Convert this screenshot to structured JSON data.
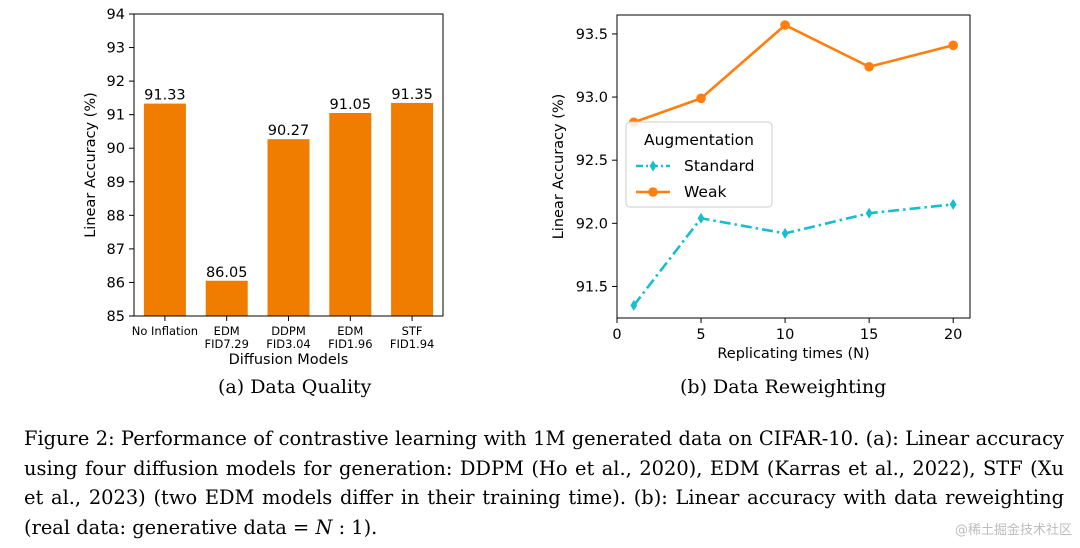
{
  "chart_data": [
    {
      "type": "bar",
      "panel": "a",
      "title": "",
      "xlabel": "Diffusion Models",
      "ylabel": "Linear Accuracy (%)",
      "ylim": [
        85,
        94
      ],
      "yticks": [
        85,
        86,
        87,
        88,
        89,
        90,
        91,
        92,
        93,
        94
      ],
      "ytick_labels": [
        "85",
        "86",
        "87",
        "88",
        "89",
        "90",
        "91",
        "92",
        "93",
        "94"
      ],
      "categories": [
        [
          "No Inflation"
        ],
        [
          "EDM",
          "FID7.29"
        ],
        [
          "DDPM",
          "FID3.04"
        ],
        [
          "EDM",
          "FID1.96"
        ],
        [
          "STF",
          "FID1.94"
        ]
      ],
      "values": [
        91.33,
        86.05,
        90.27,
        91.05,
        91.35
      ],
      "value_labels": [
        "91.33",
        "86.05",
        "90.27",
        "91.05",
        "91.35"
      ],
      "bar_color": "#f07d00",
      "grid": false
    },
    {
      "type": "line",
      "panel": "b",
      "title": "",
      "xlabel": "Replicating times (N)",
      "ylabel": "Linear Accuracy (%)",
      "xlim": [
        0,
        21
      ],
      "ylim": [
        91.25,
        93.65
      ],
      "xticks": [
        0,
        5,
        10,
        15,
        20
      ],
      "xtick_labels": [
        "0",
        "5",
        "10",
        "15",
        "20"
      ],
      "yticks": [
        91.5,
        92.0,
        92.5,
        93.0,
        93.5
      ],
      "ytick_labels": [
        "91.5",
        "92.0",
        "92.5",
        "93.0",
        "93.5"
      ],
      "x": [
        1,
        5,
        10,
        15,
        20
      ],
      "series": [
        {
          "name": "Standard",
          "values": [
            91.35,
            92.04,
            91.92,
            92.08,
            92.15
          ],
          "color": "#17becf",
          "line": "dashdot",
          "marker": "diamond"
        },
        {
          "name": "Weak",
          "values": [
            92.8,
            92.99,
            93.57,
            93.24,
            93.41
          ],
          "color": "#ff7f0e",
          "line": "solid",
          "marker": "circle"
        }
      ],
      "legend_title": "Augmentation",
      "legend_position": "center-left",
      "grid": false
    }
  ],
  "captions": {
    "sub_a": "(a)  Data Quality",
    "sub_b": "(b)  Data Reweighting",
    "figure_parts": [
      "Figure 2: Performance of contrastive learning with 1M generated data on CIFAR-10. (a): Linear accuracy using four diffusion models for generation: DDPM (Ho et al., 2020), EDM (Karras et al., 2022), STF (Xu et al., 2023) (two EDM models differ in their training time). (b): Linear accuracy with data reweighting (real data: generative data = ",
      "N",
      " : 1)."
    ]
  },
  "watermark": "@稀土掘金技术社区"
}
